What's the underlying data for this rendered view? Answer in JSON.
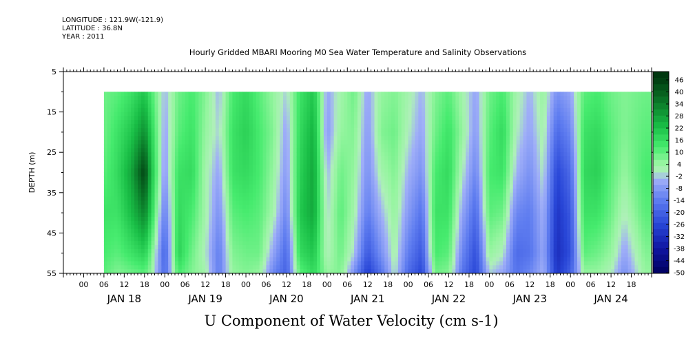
{
  "header": {
    "longitude": "LONGITUDE : 121.9W(-121.9)",
    "latitude": "LATITUDE : 36.8N",
    "year": "YEAR : 2011"
  },
  "chart_data": {
    "type": "heatmap",
    "title": "Hourly Gridded MBARI Mooring M0 Sea Water Temperature and Salinity Observations",
    "xlabel": "U Component of Water Velocity (cm s-1)",
    "ylabel": "DEPTH (m)",
    "y_axis": {
      "range": [
        5,
        55
      ],
      "inverted": true,
      "ticks": [
        5,
        15,
        25,
        35,
        45,
        55
      ]
    },
    "x_axis": {
      "range_hours": [
        -6,
        168
      ],
      "hour_tick_labels": [
        "00",
        "06",
        "12",
        "18"
      ],
      "day_labels": [
        "JAN 18",
        "JAN 19",
        "JAN 20",
        "JAN 21",
        "JAN 22",
        "JAN 23",
        "JAN 24"
      ]
    },
    "data_depth_range": [
      10,
      55
    ],
    "data_time_start_hour": 6,
    "colorbar": {
      "labels": [
        "46",
        "40",
        "34",
        "28",
        "22",
        "16",
        "10",
        "4",
        "-2",
        "-8",
        "-14",
        "-20",
        "-26",
        "-32",
        "-38",
        "-44",
        "-50"
      ]
    },
    "time_centers_hours": [
      6,
      10,
      14,
      18,
      20,
      24,
      28,
      32,
      36,
      40,
      44,
      48,
      52,
      56,
      60,
      64,
      68,
      72,
      76,
      80,
      84,
      88,
      92,
      96,
      100,
      104,
      108,
      112,
      116,
      120,
      124,
      128,
      132,
      136,
      140,
      144,
      148,
      152,
      156,
      160,
      166
    ],
    "depth_centers_m": [
      10,
      20,
      30,
      40,
      50,
      55
    ],
    "u_velocity_cm_s": [
      [
        8,
        8,
        10,
        14,
        12,
        10
      ],
      [
        10,
        14,
        16,
        14,
        10,
        6
      ],
      [
        14,
        20,
        26,
        22,
        14,
        8
      ],
      [
        20,
        30,
        44,
        32,
        18,
        10
      ],
      [
        12,
        18,
        22,
        18,
        8,
        4
      ],
      [
        -4,
        -6,
        -8,
        -14,
        -20,
        -18
      ],
      [
        8,
        10,
        14,
        16,
        18,
        12
      ],
      [
        12,
        14,
        16,
        12,
        8,
        6
      ],
      [
        6,
        4,
        2,
        2,
        0,
        2
      ],
      [
        -4,
        -2,
        -6,
        -10,
        -14,
        -14
      ],
      [
        12,
        14,
        14,
        10,
        6,
        4
      ],
      [
        16,
        18,
        16,
        12,
        8,
        6
      ],
      [
        10,
        12,
        12,
        10,
        8,
        4
      ],
      [
        4,
        6,
        4,
        2,
        -6,
        -12
      ],
      [
        -2,
        -6,
        -8,
        -12,
        -18,
        -20
      ],
      [
        14,
        16,
        18,
        20,
        16,
        10
      ],
      [
        20,
        24,
        26,
        26,
        20,
        16
      ],
      [
        -6,
        -8,
        -4,
        -2,
        0,
        4
      ],
      [
        2,
        4,
        8,
        10,
        8,
        6
      ],
      [
        8,
        6,
        4,
        2,
        -2,
        -10
      ],
      [
        -6,
        -8,
        -10,
        -14,
        -22,
        -28
      ],
      [
        4,
        6,
        2,
        -4,
        -10,
        -16
      ],
      [
        6,
        8,
        6,
        4,
        2,
        0
      ],
      [
        2,
        0,
        -4,
        -8,
        -14,
        -18
      ],
      [
        -4,
        -6,
        -10,
        -16,
        -22,
        -26
      ],
      [
        6,
        8,
        12,
        14,
        12,
        8
      ],
      [
        10,
        14,
        16,
        14,
        10,
        6
      ],
      [
        2,
        4,
        0,
        -6,
        -12,
        -16
      ],
      [
        -6,
        -8,
        -12,
        -18,
        -24,
        -26
      ],
      [
        8,
        10,
        12,
        10,
        4,
        -2
      ],
      [
        12,
        16,
        14,
        8,
        0,
        -6
      ],
      [
        2,
        0,
        -4,
        -12,
        -18,
        -16
      ],
      [
        -4,
        -6,
        -10,
        -14,
        -16,
        -12
      ],
      [
        4,
        2,
        0,
        -4,
        -6,
        -4
      ],
      [
        -10,
        -18,
        -26,
        -30,
        -32,
        -30
      ],
      [
        -6,
        -12,
        -18,
        -22,
        -24,
        -20
      ],
      [
        10,
        14,
        16,
        14,
        10,
        4
      ],
      [
        12,
        16,
        18,
        14,
        8,
        4
      ],
      [
        8,
        10,
        10,
        8,
        4,
        0
      ],
      [
        6,
        6,
        4,
        0,
        -6,
        -10
      ],
      [
        8,
        10,
        12,
        10,
        6,
        4
      ]
    ]
  }
}
